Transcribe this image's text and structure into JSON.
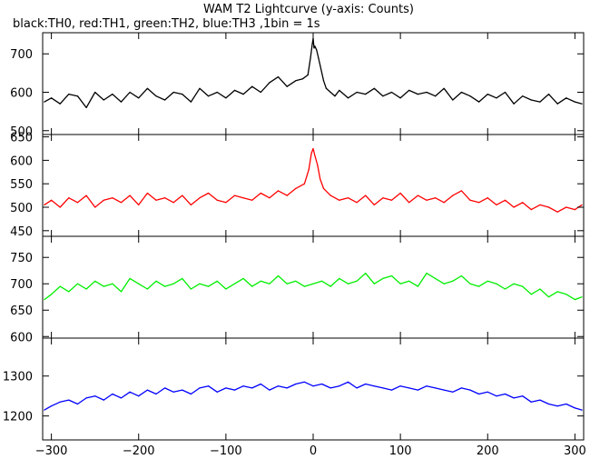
{
  "chart_data": {
    "type": "line",
    "title": "WAM T2 Lightcurve (y-axis: Counts)",
    "subtitle": "black:TH0, red:TH1, green:TH2, blue:TH3 ,1bin = 1s",
    "xlim": [
      -310,
      310
    ],
    "x_ticks": [
      -300,
      -200,
      -100,
      0,
      100,
      200,
      300
    ],
    "x_tick_labels": [
      "−300",
      "−200",
      "−100",
      "0",
      "100",
      "200",
      "300"
    ],
    "panels": [
      {
        "name": "TH0",
        "color": "#000000",
        "ylim": [
          490,
          755
        ],
        "y_ticks": [
          500,
          600,
          700
        ],
        "y_tick_labels": [
          "500",
          "600",
          "700"
        ]
      },
      {
        "name": "TH1",
        "color": "#ff0000",
        "ylim": [
          438,
          655
        ],
        "y_ticks": [
          450,
          500,
          550,
          600,
          650
        ],
        "y_tick_labels": [
          "450",
          "500",
          "550",
          "600",
          "650"
        ]
      },
      {
        "name": "TH2",
        "color": "#00ee00",
        "ylim": [
          597,
          790
        ],
        "y_ticks": [
          600,
          650,
          700,
          750
        ],
        "y_tick_labels": [
          "600",
          "650",
          "700",
          "750"
        ]
      },
      {
        "name": "TH3",
        "color": "#0000ff",
        "ylim": [
          1140,
          1395
        ],
        "y_ticks": [
          1200,
          1300
        ],
        "y_tick_labels": [
          "1200",
          "1300"
        ]
      }
    ],
    "series": [
      {
        "name": "TH0",
        "panel": 0,
        "x": [
          -308,
          -300,
          -290,
          -280,
          -270,
          -260,
          -250,
          -240,
          -230,
          -220,
          -210,
          -200,
          -190,
          -180,
          -170,
          -160,
          -150,
          -140,
          -130,
          -120,
          -110,
          -100,
          -90,
          -80,
          -70,
          -60,
          -50,
          -40,
          -30,
          -20,
          -12,
          -6,
          -3,
          -1,
          0,
          1,
          2,
          4,
          6,
          8,
          10,
          12,
          15,
          20,
          25,
          30,
          40,
          50,
          60,
          70,
          80,
          90,
          100,
          110,
          120,
          130,
          140,
          150,
          160,
          170,
          180,
          190,
          200,
          210,
          220,
          230,
          240,
          250,
          260,
          270,
          280,
          290,
          300,
          308
        ],
        "y": [
          575,
          585,
          570,
          595,
          590,
          560,
          600,
          580,
          595,
          575,
          600,
          585,
          610,
          590,
          580,
          600,
          595,
          575,
          610,
          590,
          600,
          585,
          605,
          595,
          615,
          600,
          625,
          640,
          615,
          630,
          635,
          645,
          690,
          725,
          740,
          715,
          720,
          710,
          690,
          670,
          650,
          630,
          610,
          600,
          590,
          605,
          585,
          600,
          595,
          610,
          590,
          600,
          585,
          605,
          595,
          600,
          590,
          610,
          580,
          600,
          590,
          575,
          595,
          585,
          600,
          570,
          590,
          580,
          575,
          595,
          570,
          585,
          575,
          570
        ]
      },
      {
        "name": "TH1",
        "panel": 1,
        "x": [
          -308,
          -300,
          -290,
          -280,
          -270,
          -260,
          -250,
          -240,
          -230,
          -220,
          -210,
          -200,
          -190,
          -180,
          -170,
          -160,
          -150,
          -140,
          -130,
          -120,
          -110,
          -100,
          -90,
          -80,
          -70,
          -60,
          -50,
          -40,
          -30,
          -20,
          -10,
          -5,
          -2,
          0,
          2,
          5,
          8,
          12,
          20,
          30,
          40,
          50,
          60,
          70,
          80,
          90,
          100,
          110,
          120,
          130,
          140,
          150,
          160,
          170,
          180,
          190,
          200,
          210,
          220,
          230,
          240,
          250,
          260,
          270,
          280,
          290,
          300,
          308
        ],
        "y": [
          505,
          515,
          500,
          520,
          510,
          525,
          500,
          515,
          520,
          510,
          525,
          505,
          530,
          515,
          520,
          510,
          525,
          505,
          520,
          530,
          515,
          510,
          525,
          520,
          515,
          530,
          520,
          535,
          525,
          540,
          550,
          580,
          615,
          625,
          610,
          590,
          560,
          540,
          525,
          515,
          520,
          510,
          525,
          505,
          520,
          515,
          530,
          510,
          525,
          515,
          520,
          510,
          525,
          535,
          515,
          510,
          520,
          505,
          515,
          500,
          510,
          495,
          505,
          500,
          490,
          500,
          495,
          505
        ]
      },
      {
        "name": "TH2",
        "panel": 2,
        "x": [
          -308,
          -300,
          -290,
          -280,
          -270,
          -260,
          -250,
          -240,
          -230,
          -220,
          -210,
          -200,
          -190,
          -180,
          -170,
          -160,
          -150,
          -140,
          -130,
          -120,
          -110,
          -100,
          -90,
          -80,
          -70,
          -60,
          -50,
          -40,
          -30,
          -20,
          -10,
          0,
          10,
          20,
          30,
          40,
          50,
          60,
          70,
          80,
          90,
          100,
          110,
          120,
          130,
          140,
          150,
          160,
          170,
          180,
          190,
          200,
          210,
          220,
          230,
          240,
          250,
          260,
          270,
          280,
          290,
          300,
          308
        ],
        "y": [
          670,
          680,
          695,
          685,
          700,
          690,
          705,
          695,
          700,
          685,
          710,
          700,
          690,
          705,
          695,
          700,
          710,
          690,
          700,
          695,
          705,
          690,
          700,
          710,
          695,
          705,
          700,
          715,
          700,
          705,
          695,
          700,
          705,
          695,
          710,
          700,
          705,
          720,
          700,
          710,
          715,
          700,
          705,
          695,
          720,
          710,
          700,
          705,
          715,
          700,
          695,
          705,
          700,
          690,
          700,
          695,
          680,
          690,
          675,
          685,
          680,
          670,
          675
        ]
      },
      {
        "name": "TH3",
        "panel": 3,
        "x": [
          -308,
          -300,
          -290,
          -280,
          -270,
          -260,
          -250,
          -240,
          -230,
          -220,
          -210,
          -200,
          -190,
          -180,
          -170,
          -160,
          -150,
          -140,
          -130,
          -120,
          -110,
          -100,
          -90,
          -80,
          -70,
          -60,
          -50,
          -40,
          -30,
          -20,
          -10,
          0,
          10,
          20,
          30,
          40,
          50,
          60,
          70,
          80,
          90,
          100,
          110,
          120,
          130,
          140,
          150,
          160,
          170,
          180,
          190,
          200,
          210,
          220,
          230,
          240,
          250,
          260,
          270,
          280,
          290,
          300,
          308
        ],
        "y": [
          1215,
          1225,
          1235,
          1240,
          1230,
          1245,
          1250,
          1240,
          1255,
          1245,
          1260,
          1250,
          1265,
          1255,
          1270,
          1260,
          1265,
          1255,
          1270,
          1275,
          1260,
          1270,
          1265,
          1275,
          1270,
          1280,
          1265,
          1275,
          1270,
          1280,
          1285,
          1275,
          1280,
          1270,
          1275,
          1285,
          1270,
          1280,
          1275,
          1270,
          1265,
          1275,
          1270,
          1265,
          1275,
          1270,
          1265,
          1260,
          1270,
          1265,
          1255,
          1260,
          1250,
          1255,
          1245,
          1250,
          1235,
          1240,
          1230,
          1225,
          1230,
          1220,
          1215
        ]
      }
    ]
  }
}
